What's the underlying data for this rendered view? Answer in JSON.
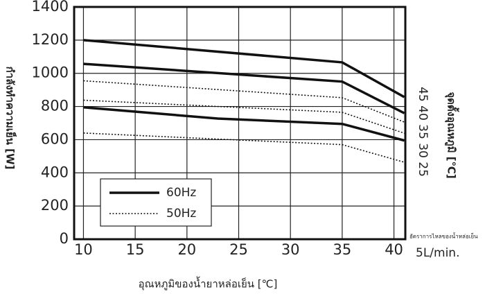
{
  "chart_data": {
    "type": "line",
    "xlabel": "อุณหภูมิของน้ำยาหล่อเย็น [℃]",
    "ylabel": "กำลังทำความเย็น [W]",
    "y2label": "จุดตั้งอุณหภูมิ [℃]",
    "y2note": "45 40 35 30 25",
    "flow_note": "อัตราการไหลของน้ำหล่อเย็น",
    "flow_value": "5L/min.",
    "xlim": [
      9.1,
      41.1
    ],
    "xticks": [
      10,
      15,
      20,
      25,
      30,
      35,
      40
    ],
    "ylim": [
      0,
      1400
    ],
    "yticks": [
      0,
      200,
      400,
      600,
      800,
      1000,
      1200,
      1400
    ],
    "grid": true,
    "legend": [
      {
        "name": "60Hz",
        "style": "solid"
      },
      {
        "name": "50Hz",
        "style": "dotted"
      }
    ],
    "series": [
      {
        "style": "solid",
        "color": "#111111",
        "x": [
          10,
          35,
          41
        ],
        "values": [
          1200,
          1066,
          857
        ]
      },
      {
        "style": "solid",
        "color": "#111111",
        "x": [
          10,
          35,
          41
        ],
        "values": [
          1057,
          950,
          760
        ]
      },
      {
        "style": "solid",
        "color": "#111111",
        "x": [
          10,
          23,
          35,
          41
        ],
        "values": [
          795,
          727,
          695,
          595
        ]
      },
      {
        "style": "dotted",
        "color": "#111111",
        "x": [
          10,
          35,
          41
        ],
        "values": [
          955,
          853,
          706
        ]
      },
      {
        "style": "dotted",
        "color": "#111111",
        "x": [
          10,
          35,
          41
        ],
        "values": [
          838,
          765,
          639
        ]
      },
      {
        "style": "dotted",
        "color": "#111111",
        "x": [
          10,
          35,
          41
        ],
        "values": [
          640,
          570,
          464
        ]
      }
    ]
  }
}
